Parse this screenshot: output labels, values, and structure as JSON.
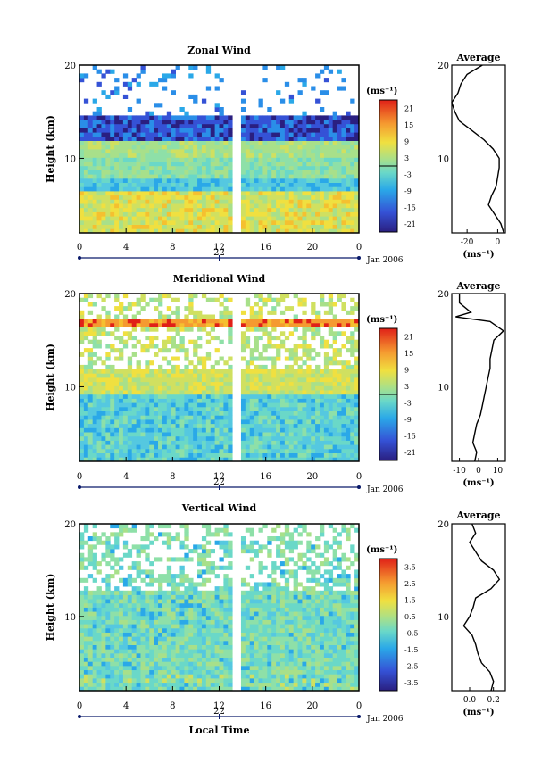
{
  "chart_data": [
    {
      "type": "heatmap",
      "title": "Zonal Wind",
      "ylabel": "Height (km)",
      "y_ticks": [
        "20",
        "10"
      ],
      "x_ticks": [
        "0",
        "4",
        "8",
        "12",
        "16",
        "20",
        "0"
      ],
      "date_mark": "22",
      "date_label": "Jan 2006",
      "colorbar_unit": "(ms⁻¹)",
      "colorbar_ticks": [
        "21",
        "15",
        "9",
        "3",
        "-3",
        "-9",
        "-15",
        "-21"
      ],
      "colorbar_range": [
        -24,
        24
      ],
      "avg_title": "Average",
      "avg_xticks": [
        "-20",
        "0"
      ],
      "avg_xlim": [
        -30,
        5
      ],
      "avg_unit": "(ms⁻¹)",
      "avg_profile": {
        "height": [
          2,
          3,
          4,
          5,
          6,
          7,
          8,
          9,
          10,
          11,
          12,
          13,
          14,
          15,
          16,
          17,
          18,
          19,
          20
        ],
        "value": [
          4,
          2,
          -2,
          -6,
          -4,
          -1,
          0,
          1,
          1,
          -3,
          -9,
          -17,
          -25,
          -28,
          -30,
          -26,
          -24,
          -20,
          -10
        ]
      }
    },
    {
      "type": "heatmap",
      "title": "Meridional Wind",
      "ylabel": "Height (km)",
      "y_ticks": [
        "20",
        "10"
      ],
      "x_ticks": [
        "0",
        "4",
        "8",
        "12",
        "16",
        "20",
        "0"
      ],
      "date_mark": "22",
      "date_label": "Jan 2006",
      "colorbar_unit": "(ms⁻¹)",
      "colorbar_ticks": [
        "21",
        "15",
        "9",
        "3",
        "-3",
        "-9",
        "-15",
        "-21"
      ],
      "colorbar_range": [
        -24,
        24
      ],
      "avg_title": "Average",
      "avg_xticks": [
        "-10",
        "0",
        "10"
      ],
      "avg_xlim": [
        -14,
        14
      ],
      "avg_unit": "(ms⁻¹)",
      "avg_profile": {
        "height": [
          2,
          3,
          4,
          5,
          6,
          7,
          8,
          9,
          10,
          11,
          12,
          13,
          14,
          15,
          16,
          17,
          17.5,
          18,
          19,
          20
        ],
        "value": [
          -2,
          -1,
          -3,
          -2,
          -1,
          1,
          2,
          3,
          4,
          5,
          6,
          6,
          7,
          8,
          13,
          6,
          -12,
          -4,
          -10,
          -10
        ]
      }
    },
    {
      "type": "heatmap",
      "title": "Vertical Wind",
      "ylabel": "Height (km)",
      "xlabel": "Local Time",
      "y_ticks": [
        "20",
        "10"
      ],
      "x_ticks": [
        "0",
        "4",
        "8",
        "12",
        "16",
        "20",
        "0"
      ],
      "date_mark": "22",
      "date_label": "Jan 2006",
      "colorbar_unit": "(ms⁻¹)",
      "colorbar_ticks": [
        "3.5",
        "2.5",
        "1.5",
        "0.5",
        "-0.5",
        "-1.5",
        "-2.5",
        "-3.5"
      ],
      "colorbar_range": [
        -4,
        4
      ],
      "avg_title": "Average",
      "avg_xticks": [
        "0.0",
        "0.2"
      ],
      "avg_xlim": [
        -0.15,
        0.3
      ],
      "avg_unit": "(ms⁻¹)",
      "avg_profile": {
        "height": [
          2,
          3,
          4,
          5,
          6,
          7,
          8,
          9,
          10,
          11,
          12,
          13,
          14,
          15,
          16,
          17,
          18,
          19,
          20
        ],
        "value": [
          0.18,
          0.2,
          0.17,
          0.1,
          0.07,
          0.05,
          0.02,
          -0.05,
          0.0,
          0.03,
          0.05,
          0.18,
          0.25,
          0.2,
          0.1,
          0.05,
          0.0,
          0.05,
          0.02
        ]
      }
    }
  ]
}
